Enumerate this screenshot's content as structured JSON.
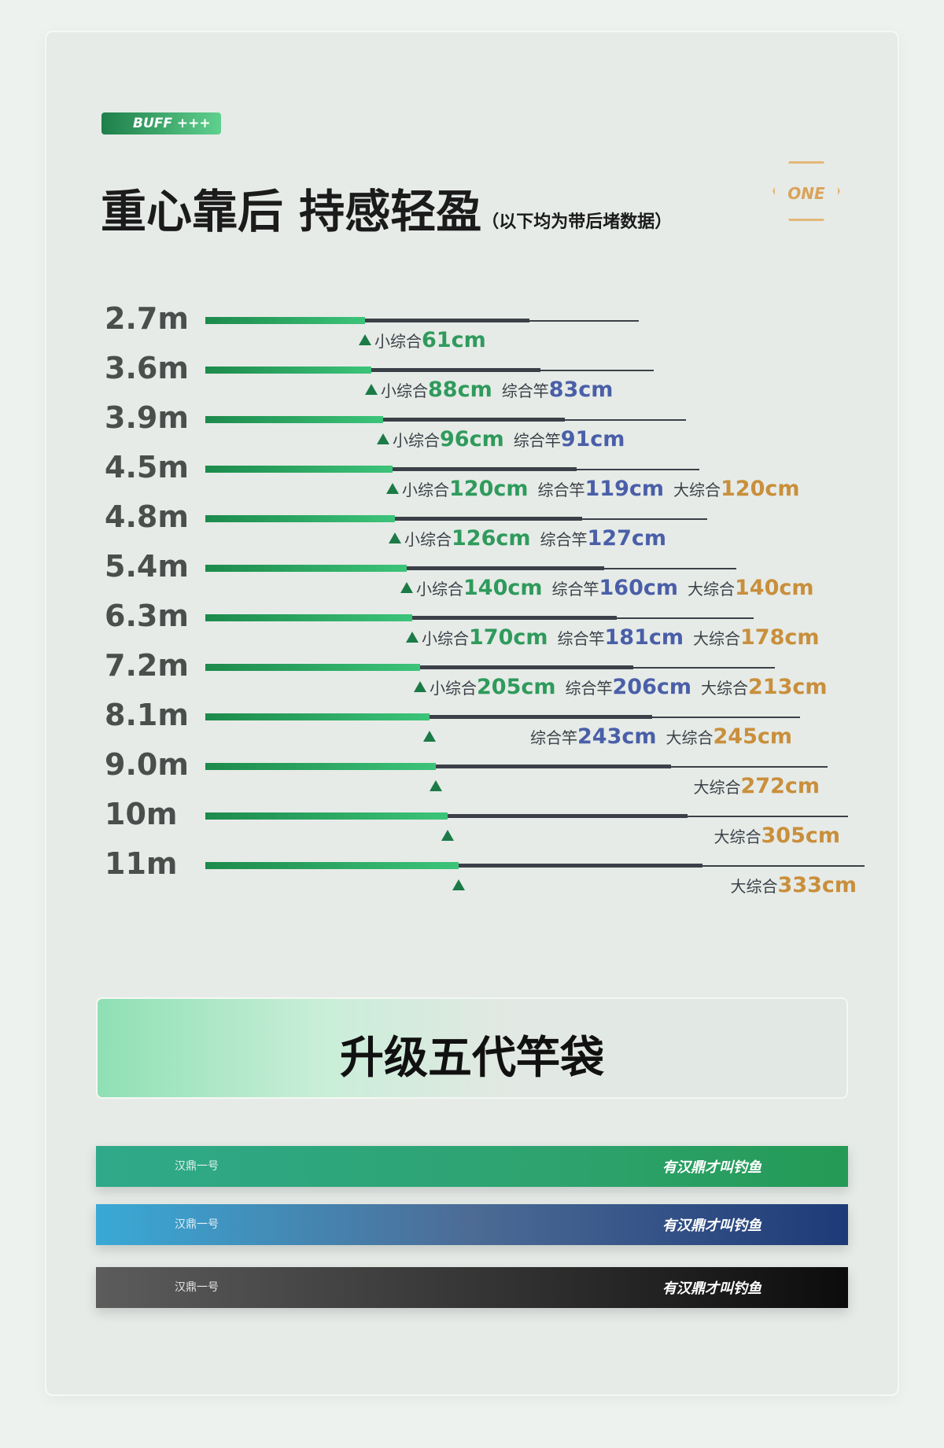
{
  "header": {
    "brand": "BUFF +++",
    "title": "重心靠后 持感轻盈",
    "note": "（以下均为带后堵数据）",
    "badge": "ONE"
  },
  "rods": [
    {
      "length": "2.7m",
      "specs": [
        {
          "label": "小综合",
          "value": "61cm"
        }
      ]
    },
    {
      "length": "3.6m",
      "specs": [
        {
          "label": "小综合",
          "value": "88cm"
        },
        {
          "label": "综合竿",
          "value": "83cm"
        }
      ]
    },
    {
      "length": "3.9m",
      "specs": [
        {
          "label": "小综合",
          "value": "96cm"
        },
        {
          "label": "综合竿",
          "value": "91cm"
        }
      ]
    },
    {
      "length": "4.5m",
      "specs": [
        {
          "label": "小综合",
          "value": "120cm"
        },
        {
          "label": "综合竿",
          "value": "119cm"
        },
        {
          "label": "大综合",
          "value": "120cm"
        }
      ]
    },
    {
      "length": "4.8m",
      "specs": [
        {
          "label": "小综合",
          "value": "126cm"
        },
        {
          "label": "综合竿",
          "value": "127cm"
        }
      ]
    },
    {
      "length": "5.4m",
      "specs": [
        {
          "label": "小综合",
          "value": "140cm"
        },
        {
          "label": "综合竿",
          "value": "160cm"
        },
        {
          "label": "大综合",
          "value": "140cm"
        }
      ]
    },
    {
      "length": "6.3m",
      "specs": [
        {
          "label": "小综合",
          "value": "170cm"
        },
        {
          "label": "综合竿",
          "value": "181cm"
        },
        {
          "label": "大综合",
          "value": "178cm"
        }
      ]
    },
    {
      "length": "7.2m",
      "specs": [
        {
          "label": "小综合",
          "value": "205cm"
        },
        {
          "label": "综合竿",
          "value": "206cm"
        },
        {
          "label": "大综合",
          "value": "213cm"
        }
      ]
    },
    {
      "length": "8.1m",
      "specs": [
        {
          "label": "综合竿",
          "value": "243cm"
        },
        {
          "label": "大综合",
          "value": "245cm"
        }
      ]
    },
    {
      "length": "9.0m",
      "specs": [
        {
          "label": "大综合",
          "value": "272cm"
        }
      ]
    },
    {
      "length": "10m",
      "specs": [
        {
          "label": "大综合",
          "value": "305cm"
        }
      ]
    },
    {
      "length": "11m",
      "specs": [
        {
          "label": "大综合",
          "value": "333cm"
        }
      ]
    }
  ],
  "bag_section": {
    "title": "升级五代竿袋",
    "bags": [
      {
        "name": "汉鼎一号",
        "slogan": "有汉鼎才叫钓鱼"
      },
      {
        "name": "汉鼎一号",
        "slogan": "有汉鼎才叫钓鱼"
      },
      {
        "name": "汉鼎一号",
        "slogan": "有汉鼎才叫钓鱼"
      }
    ]
  }
}
